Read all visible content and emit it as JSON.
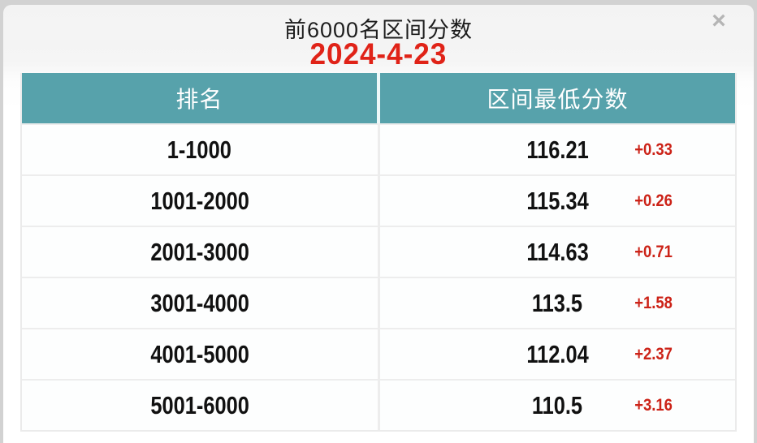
{
  "dialog": {
    "title": "前6000名区间分数",
    "date": "2024-4-23",
    "close_label": "×"
  },
  "table": {
    "headers": [
      "排名",
      "区间最低分数"
    ],
    "rows": [
      {
        "rank": "1-1000",
        "score": "116.21",
        "delta": "+0.33"
      },
      {
        "rank": "1001-2000",
        "score": "115.34",
        "delta": "+0.26"
      },
      {
        "rank": "2001-3000",
        "score": "114.63",
        "delta": "+0.71"
      },
      {
        "rank": "3001-4000",
        "score": "113.5",
        "delta": "+1.58"
      },
      {
        "rank": "4001-5000",
        "score": "112.04",
        "delta": "+2.37"
      },
      {
        "rank": "5001-6000",
        "score": "110.5",
        "delta": "+3.16"
      }
    ]
  },
  "colors": {
    "header_bg": "#57a2ab",
    "date_red": "#e02318",
    "delta_red": "#cc2318"
  }
}
